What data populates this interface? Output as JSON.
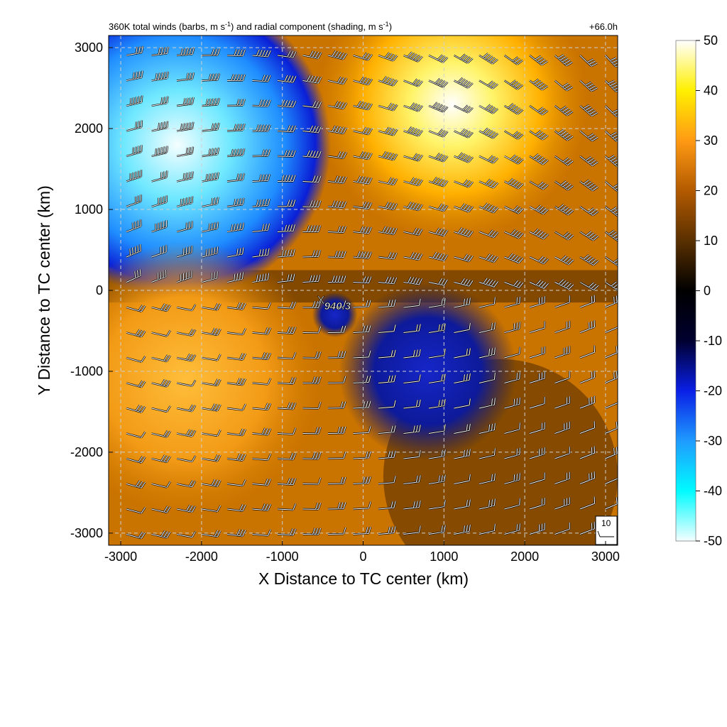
{
  "chart_data": {
    "type": "heatmap",
    "title": "360K total winds (barbs, m s",
    "title_sup1": "-1",
    "title_mid": ") and radial component (shading, m s",
    "title_sup2": "-1",
    "title_end": ")",
    "forecast_hour": "+66.0h",
    "xlabel": "X Distance to TC center (km)",
    "ylabel": "Y Distance to TC center (km)",
    "xlim": [
      -3150,
      3150
    ],
    "ylim": [
      -3150,
      3150
    ],
    "x_ticks": [
      -3000,
      -2000,
      -1000,
      0,
      1000,
      2000,
      3000
    ],
    "y_ticks": [
      -3000,
      -2000,
      -1000,
      0,
      1000,
      2000,
      3000
    ],
    "grid": true,
    "colorbar": {
      "range": [
        -50,
        50
      ],
      "ticks": [
        -50,
        -40,
        -30,
        -20,
        -10,
        0,
        10,
        20,
        30,
        40,
        50
      ],
      "colors": [
        "#f4feff",
        "#00fbff",
        "#1f9bff",
        "#0a1fe6",
        "#000030",
        "#000000",
        "#5a3000",
        "#b35a00",
        "#ff9a14",
        "#fff000",
        "#ffffff"
      ]
    },
    "center_marker": {
      "symbol": "X",
      "x": -500,
      "y": -150,
      "label": "940.3"
    },
    "barb_reference": {
      "label": "10",
      "speed": 10
    },
    "regions": [
      {
        "type": "radial",
        "cx": -2300,
        "cy": 1800,
        "r": 1900,
        "value": -42
      },
      {
        "type": "radial",
        "cx": 1100,
        "cy": 2300,
        "r": 1700,
        "value": 44
      },
      {
        "type": "radial",
        "cx": -2200,
        "cy": -1100,
        "r": 1700,
        "value": 25
      },
      {
        "type": "radial",
        "cx": 800,
        "cy": -1000,
        "r": 1100,
        "value": -14
      },
      {
        "type": "radial",
        "cx": -350,
        "cy": -300,
        "r": 280,
        "value": -18
      }
    ]
  }
}
